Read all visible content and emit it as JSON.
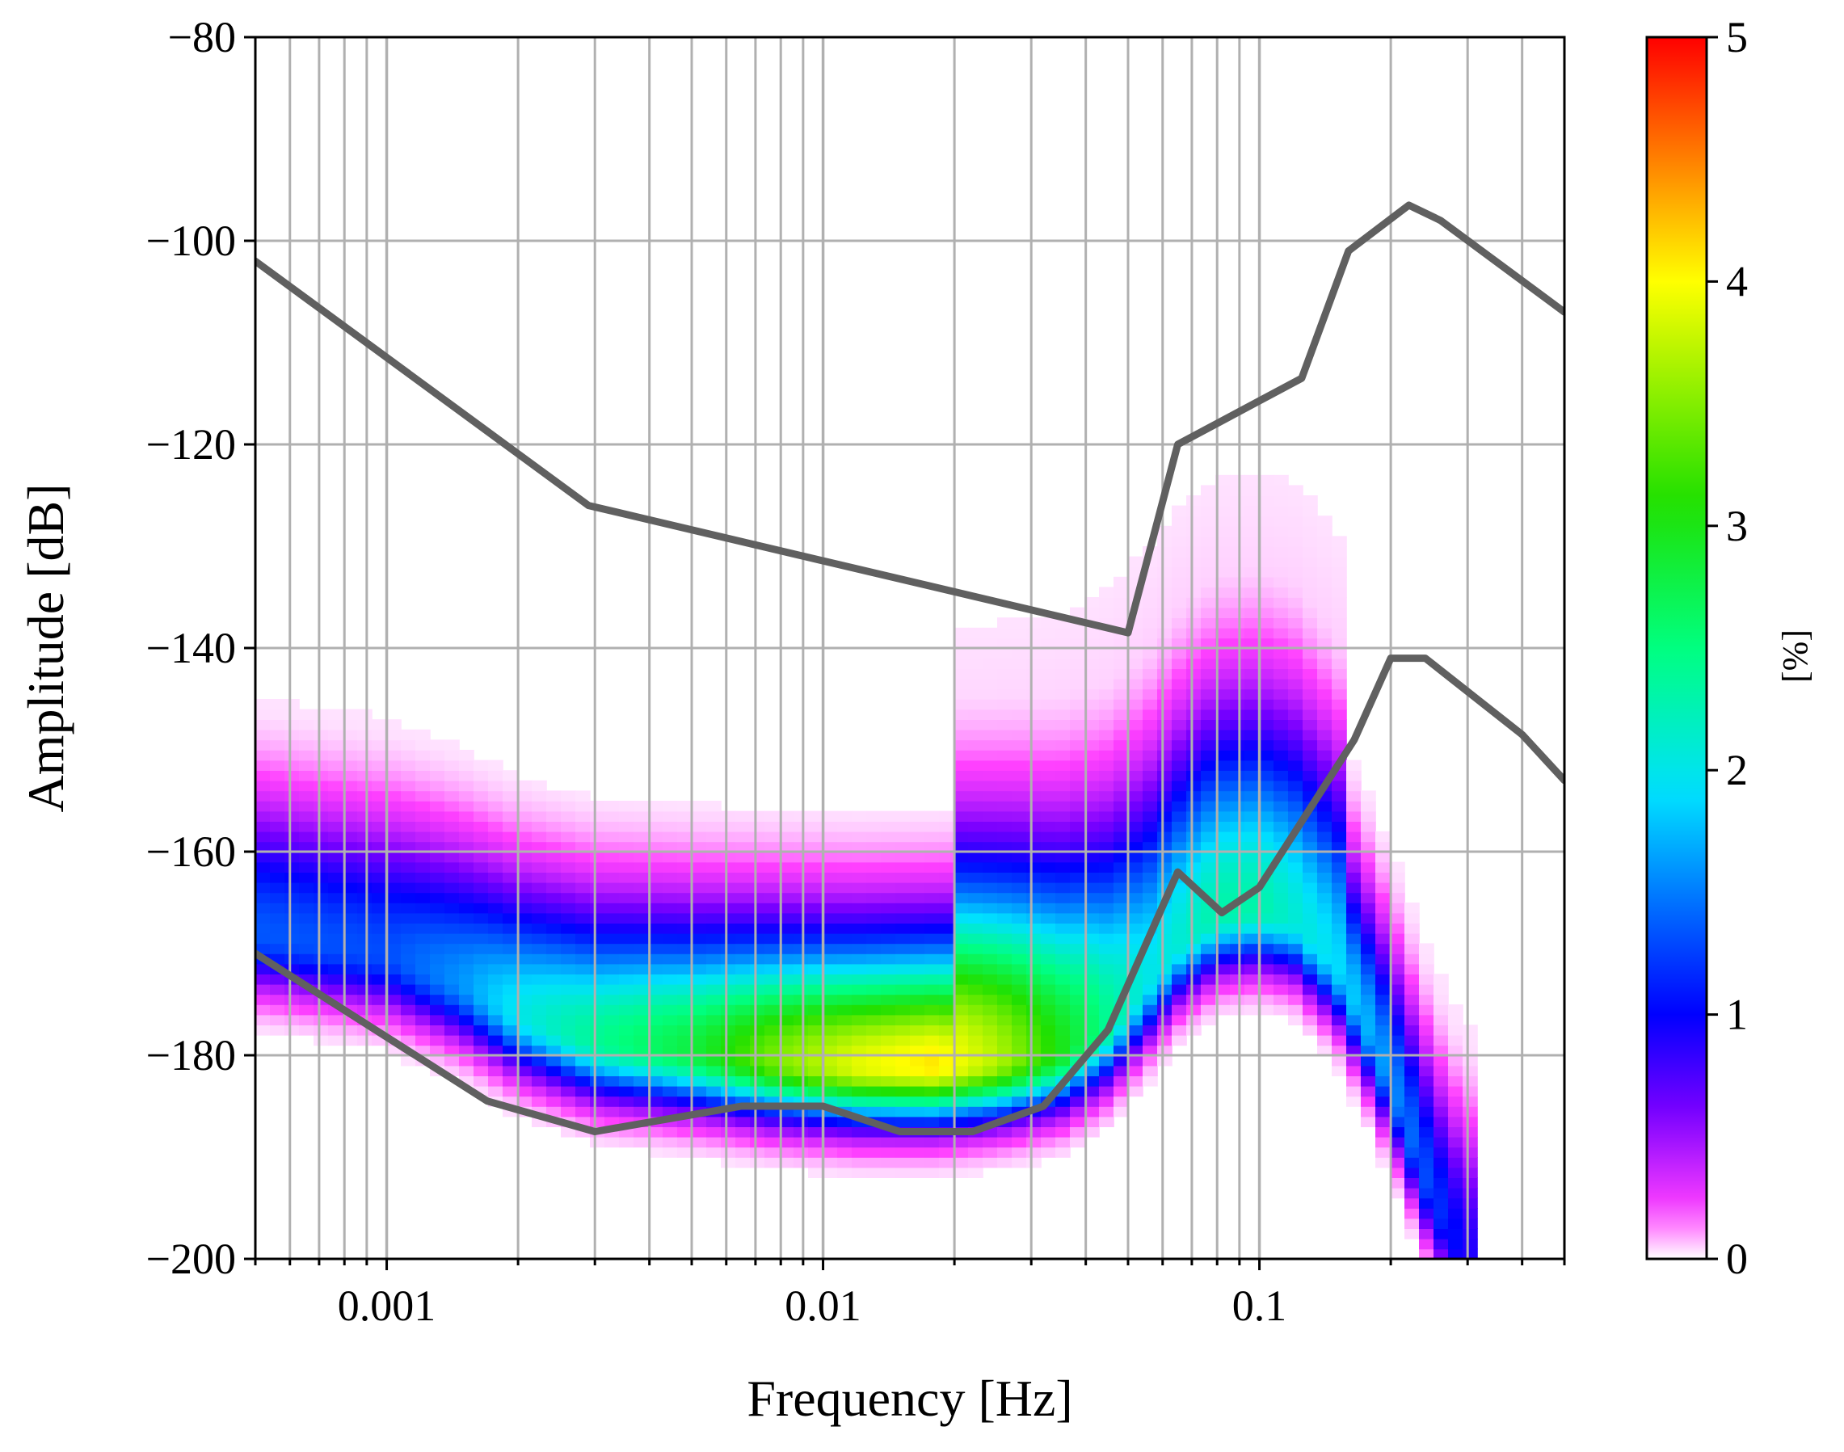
{
  "chart_data": {
    "type": "heatmap",
    "title": "",
    "xlabel": "Frequency [Hz]",
    "ylabel": "Amplitude [dB]",
    "x_scale": "log",
    "xlim": [
      0.0005,
      0.5
    ],
    "ylim": [
      -200,
      -80
    ],
    "grid": true,
    "x_ticks": [
      0.001,
      0.01,
      0.1
    ],
    "x_tick_labels": [
      "0.001",
      "0.01",
      "0.1"
    ],
    "y_ticks": [
      -200,
      -180,
      -160,
      -140,
      -120,
      -100,
      -80
    ],
    "y_tick_labels": [
      "−200",
      "−180",
      "−160",
      "−140",
      "−120",
      "−100",
      "−80"
    ],
    "colorbar": {
      "label": "[%]",
      "range": [
        0,
        5
      ],
      "ticks": [
        0,
        1,
        2,
        3,
        4,
        5
      ],
      "tick_labels": [
        "0",
        "1",
        "2",
        "3",
        "4",
        "5"
      ],
      "colors": [
        "#ffffff",
        "#ff40ff",
        "#7a00ff",
        "#0000ff",
        "#00e0ff",
        "#00ff80",
        "#20e000",
        "#ffff00",
        "#ff8000",
        "#ff0000"
      ]
    },
    "curve_color": "#606060",
    "series": [
      {
        "x": [
          0.0005,
          0.0029,
          0.05,
          0.065,
          0.125,
          0.16,
          0.22,
          0.26,
          0.5
        ],
        "y": [
          -102,
          -126,
          -138.5,
          -120,
          -113.5,
          -101,
          -96.5,
          -98,
          -107
        ]
      },
      {
        "x": [
          0.0005,
          0.0017,
          0.003,
          0.0065,
          0.01,
          0.015,
          0.022,
          0.032,
          0.045,
          0.065,
          0.082,
          0.1,
          0.165,
          0.2,
          0.24,
          0.4,
          0.5
        ],
        "y": [
          -170,
          -184.5,
          -187.5,
          -185,
          -185,
          -187.5,
          -187.5,
          -185,
          -177.5,
          -162,
          -166,
          -163.5,
          -149,
          -141,
          -141,
          -148.5,
          -153
        ]
      }
    ],
    "density_ridge": {
      "x": [
        0.0005,
        0.001,
        0.0015,
        0.002,
        0.003,
        0.005,
        0.008,
        0.012,
        0.018,
        0.025,
        0.035,
        0.045,
        0.055,
        0.065,
        0.08,
        0.1,
        0.12,
        0.15,
        0.18,
        0.21,
        0.24,
        0.27,
        0.3
      ],
      "center_db": [
        -168,
        -170,
        -173,
        -176,
        -178.5,
        -179.5,
        -180.5,
        -181,
        -181,
        -180.5,
        -179.5,
        -177,
        -173,
        -169,
        -166,
        -165.5,
        -166.5,
        -171,
        -178,
        -185,
        -192,
        -197,
        -200
      ],
      "peak_percent": [
        1.35,
        1.3,
        1.6,
        2.0,
        2.4,
        2.8,
        3.5,
        3.9,
        4.1,
        3.7,
        3.0,
        2.4,
        2.0,
        2.1,
        2.3,
        2.3,
        2.1,
        1.9,
        1.7,
        1.5,
        1.3,
        1.1,
        0.9
      ]
    }
  }
}
